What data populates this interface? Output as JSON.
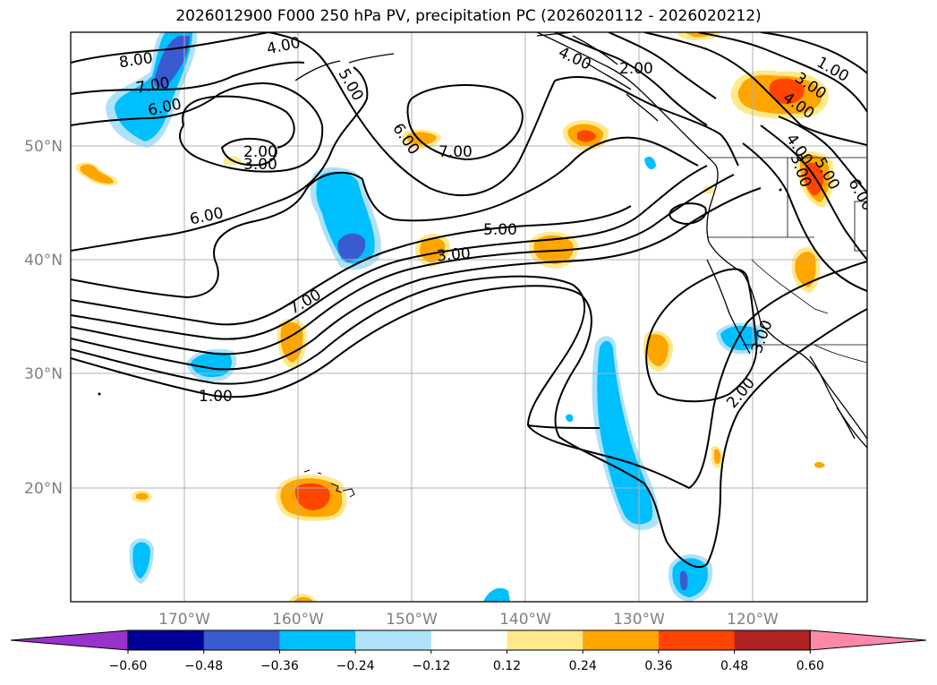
{
  "title": "2026012900 F000 250 hPa PV, precipitation PC (2026020112 - 2026020212)",
  "map": {
    "lon_ticks": [
      {
        "value": -170,
        "label": "170°W"
      },
      {
        "value": -160,
        "label": "160°W"
      },
      {
        "value": -150,
        "label": "150°W"
      },
      {
        "value": -140,
        "label": "140°W"
      },
      {
        "value": -130,
        "label": "130°W"
      },
      {
        "value": -120,
        "label": "120°W"
      }
    ],
    "lat_ticks": [
      {
        "value": 50,
        "label": "50°N"
      },
      {
        "value": 40,
        "label": "40°N"
      },
      {
        "value": 30,
        "label": "30°N"
      },
      {
        "value": 20,
        "label": "20°N"
      }
    ],
    "lon_range": [
      -180,
      -110
    ],
    "lat_range": [
      10,
      60
    ],
    "contour_labels": [
      "8.00",
      "7.00",
      "6.00",
      "4.00",
      "5.00",
      "2.00",
      "3.00",
      "6.00",
      "6.00",
      "7.00",
      "5.00",
      "3.00",
      "7.00",
      "1.00",
      "4.00",
      "2.00",
      "1.00",
      "3.00",
      "4.00",
      "4.00",
      "3.00",
      "5.00",
      "6.00",
      "3.00",
      "2.00"
    ]
  },
  "colorbar": {
    "ticks": [
      "−0.60",
      "−0.48",
      "−0.36",
      "−0.24",
      "−0.12",
      "0.12",
      "0.24",
      "0.36",
      "0.48",
      "0.60"
    ],
    "colors": [
      "#9932cc",
      "#000099",
      "#3a5bd0",
      "#00bfff",
      "#ade2fa",
      "#ffffff",
      "#ffe98a",
      "#ffa500",
      "#ff4500",
      "#b22222",
      "#ff88aa"
    ]
  }
}
